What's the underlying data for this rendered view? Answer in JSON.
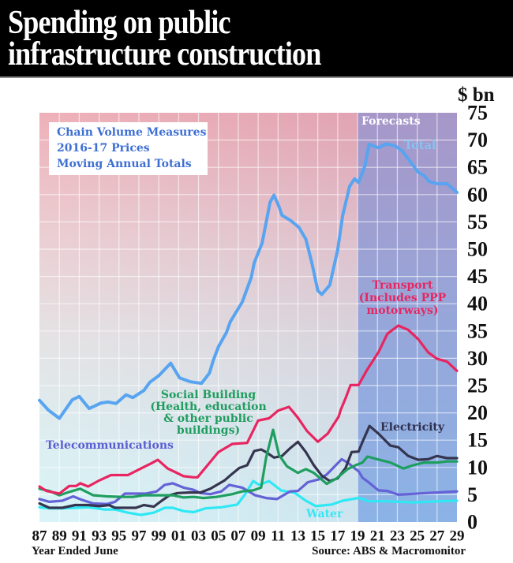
{
  "chart_data": {
    "type": "line",
    "title": "Spending on public infrastructure construction",
    "title_lines": [
      "Spending on public",
      "infrastructure construction"
    ],
    "unit_label": "$ bn",
    "xlabel": "Year Ended June",
    "ylabel": "$ bn",
    "source": "Source: ABS & Macromonitor",
    "note_lines": [
      "Chain Volume Measures",
      "2016-17 Prices",
      "Moving Annual Totals"
    ],
    "forecast_label": "Forecasts",
    "forecast_start": 2019,
    "xlim": [
      1987,
      2029
    ],
    "ylim": [
      0,
      75
    ],
    "grid": true,
    "legend": "inline labels",
    "y_ticks": [
      0,
      5,
      10,
      15,
      20,
      25,
      30,
      35,
      40,
      45,
      50,
      55,
      60,
      65,
      70,
      75
    ],
    "x_ticks": [
      {
        "year": 1987,
        "label": "87"
      },
      {
        "year": 1989,
        "label": "89"
      },
      {
        "year": 1991,
        "label": "91"
      },
      {
        "year": 1993,
        "label": "93"
      },
      {
        "year": 1995,
        "label": "95"
      },
      {
        "year": 1997,
        "label": "97"
      },
      {
        "year": 1999,
        "label": "99"
      },
      {
        "year": 2001,
        "label": "01"
      },
      {
        "year": 2003,
        "label": "03"
      },
      {
        "year": 2005,
        "label": "05"
      },
      {
        "year": 2007,
        "label": "07"
      },
      {
        "year": 2009,
        "label": "09"
      },
      {
        "year": 2011,
        "label": "11"
      },
      {
        "year": 2013,
        "label": "13"
      },
      {
        "year": 2015,
        "label": "15"
      },
      {
        "year": 2017,
        "label": "17"
      },
      {
        "year": 2019,
        "label": "19"
      },
      {
        "year": 2021,
        "label": "21"
      },
      {
        "year": 2023,
        "label": "23"
      },
      {
        "year": 2025,
        "label": "25"
      },
      {
        "year": 2027,
        "label": "27"
      },
      {
        "year": 2029,
        "label": "29"
      }
    ],
    "series": [
      {
        "name": "Total",
        "label_lines": [
          "Total"
        ],
        "color": "#58a4f0",
        "label_color": "#86c3f4",
        "points": [
          [
            1987.0,
            22.3
          ],
          [
            1987.9,
            20.5
          ],
          [
            1989.0,
            19.0
          ],
          [
            1990.3,
            22.4
          ],
          [
            1991.0,
            23.0
          ],
          [
            1992.0,
            20.8
          ],
          [
            1993.2,
            21.8
          ],
          [
            1993.9,
            22.0
          ],
          [
            1994.7,
            21.7
          ],
          [
            1995.7,
            23.3
          ],
          [
            1996.4,
            22.8
          ],
          [
            1997.5,
            24.1
          ],
          [
            1998.1,
            25.6
          ],
          [
            1999.0,
            26.8
          ],
          [
            2000.2,
            29.1
          ],
          [
            2001.1,
            26.4
          ],
          [
            2002.2,
            25.7
          ],
          [
            2003.3,
            25.4
          ],
          [
            2004.1,
            27.3
          ],
          [
            2004.5,
            29.7
          ],
          [
            2005.0,
            32.1
          ],
          [
            2005.8,
            34.7
          ],
          [
            2006.2,
            36.7
          ],
          [
            2007.4,
            40.3
          ],
          [
            2008.3,
            44.8
          ],
          [
            2008.6,
            47.5
          ],
          [
            2009.4,
            51.1
          ],
          [
            2010.2,
            58.6
          ],
          [
            2010.6,
            59.9
          ],
          [
            2011.1,
            57.8
          ],
          [
            2011.4,
            56.2
          ],
          [
            2012.3,
            55.2
          ],
          [
            2013.1,
            54.0
          ],
          [
            2013.8,
            51.8
          ],
          [
            2014.4,
            47.5
          ],
          [
            2015.0,
            42.4
          ],
          [
            2015.4,
            41.7
          ],
          [
            2016.2,
            43.4
          ],
          [
            2017.0,
            49.9
          ],
          [
            2017.5,
            56.2
          ],
          [
            2018.2,
            61.5
          ],
          [
            2018.7,
            62.9
          ],
          [
            2019.1,
            62.2
          ],
          [
            2019.75,
            65.3
          ],
          [
            2020.15,
            69.2
          ],
          [
            2021.1,
            68.6
          ],
          [
            2021.9,
            69.3
          ],
          [
            2022.8,
            68.9
          ],
          [
            2023.5,
            68.0
          ],
          [
            2024.4,
            65.8
          ],
          [
            2025.1,
            64.1
          ],
          [
            2025.7,
            63.5
          ],
          [
            2026.2,
            62.4
          ],
          [
            2027.0,
            62.0
          ],
          [
            2028.0,
            62.0
          ],
          [
            2029.0,
            60.4
          ]
        ]
      },
      {
        "name": "Transport (Includes PPP motorways)",
        "label_lines": [
          "Transport",
          "(Includes PPP",
          "motorways)"
        ],
        "color": "#e82560",
        "label_color": "#e82560",
        "points": [
          [
            1987.0,
            6.5
          ],
          [
            1987.7,
            5.7
          ],
          [
            1989.0,
            5.2
          ],
          [
            1990.0,
            6.6
          ],
          [
            1990.7,
            6.6
          ],
          [
            1991.1,
            7.1
          ],
          [
            1991.9,
            6.5
          ],
          [
            1993.0,
            7.6
          ],
          [
            1994.2,
            8.6
          ],
          [
            1995.9,
            8.6
          ],
          [
            1997.2,
            9.8
          ],
          [
            1998.3,
            10.8
          ],
          [
            1998.9,
            11.4
          ],
          [
            1999.9,
            9.8
          ],
          [
            2000.7,
            9.1
          ],
          [
            2001.5,
            8.4
          ],
          [
            2002.5,
            8.2
          ],
          [
            2002.9,
            8.2
          ],
          [
            2004.0,
            10.6
          ],
          [
            2005.0,
            12.8
          ],
          [
            2006.4,
            14.3
          ],
          [
            2007.9,
            14.5
          ],
          [
            2009.0,
            18.6
          ],
          [
            2010.1,
            19.0
          ],
          [
            2011.0,
            20.4
          ],
          [
            2012.1,
            21.1
          ],
          [
            2013.0,
            19.1
          ],
          [
            2013.9,
            16.7
          ],
          [
            2015.0,
            14.7
          ],
          [
            2016.0,
            16.2
          ],
          [
            2017.1,
            19.3
          ],
          [
            2017.3,
            20.5
          ],
          [
            2017.8,
            22.7
          ],
          [
            2018.3,
            25.1
          ],
          [
            2019.1,
            25.1
          ],
          [
            2020.0,
            28.0
          ],
          [
            2021.1,
            31.1
          ],
          [
            2022.0,
            34.5
          ],
          [
            2023.1,
            36.0
          ],
          [
            2024.1,
            35.2
          ],
          [
            2025.1,
            33.5
          ],
          [
            2026.1,
            31.1
          ],
          [
            2027.0,
            29.9
          ],
          [
            2028.0,
            29.4
          ],
          [
            2029.0,
            27.7
          ]
        ]
      },
      {
        "name": "Social Building (Health, education & other public buildings)",
        "label_lines": [
          "Social Building",
          "(Health, education",
          "& other public",
          "buildings)"
        ],
        "color": "#1e9e5f",
        "label_color": "#1f9d5f",
        "points": [
          [
            1987.0,
            6.1
          ],
          [
            1988.0,
            5.7
          ],
          [
            1989.0,
            4.9
          ],
          [
            1990.0,
            5.5
          ],
          [
            1991.1,
            6.1
          ],
          [
            1992.4,
            4.9
          ],
          [
            1993.8,
            4.7
          ],
          [
            1995.4,
            4.6
          ],
          [
            1996.4,
            4.6
          ],
          [
            1997.5,
            4.9
          ],
          [
            1999.0,
            4.9
          ],
          [
            2000.4,
            4.9
          ],
          [
            2001.5,
            4.5
          ],
          [
            2002.5,
            4.6
          ],
          [
            2003.5,
            4.4
          ],
          [
            2004.8,
            4.6
          ],
          [
            2006.4,
            5.1
          ],
          [
            2007.4,
            5.6
          ],
          [
            2008.5,
            5.8
          ],
          [
            2009.3,
            6.3
          ],
          [
            2009.8,
            11.8
          ],
          [
            2010.5,
            16.9
          ],
          [
            2011.1,
            12.3
          ],
          [
            2011.9,
            10.2
          ],
          [
            2013.0,
            9.0
          ],
          [
            2013.8,
            9.7
          ],
          [
            2014.6,
            9.0
          ],
          [
            2015.9,
            7.0
          ],
          [
            2016.9,
            8.0
          ],
          [
            2018.0,
            9.7
          ],
          [
            2018.8,
            10.4
          ],
          [
            2019.5,
            10.9
          ],
          [
            2020.0,
            12.0
          ],
          [
            2021.0,
            11.5
          ],
          [
            2022.3,
            10.9
          ],
          [
            2023.6,
            9.8
          ],
          [
            2024.6,
            10.4
          ],
          [
            2025.7,
            10.9
          ],
          [
            2027.0,
            10.9
          ],
          [
            2028.0,
            11.1
          ],
          [
            2029.0,
            11.1
          ]
        ]
      },
      {
        "name": "Electricity",
        "label_lines": [
          "Electricity"
        ],
        "color": "#35354f",
        "label_color": "#303150",
        "points": [
          [
            1987.0,
            3.4
          ],
          [
            1988.0,
            2.6
          ],
          [
            1989.3,
            2.6
          ],
          [
            1990.6,
            3.1
          ],
          [
            1991.9,
            3.1
          ],
          [
            1993.0,
            2.9
          ],
          [
            1994.0,
            3.1
          ],
          [
            1994.6,
            2.6
          ],
          [
            1996.7,
            2.6
          ],
          [
            1997.5,
            3.1
          ],
          [
            1998.5,
            2.8
          ],
          [
            1999.3,
            3.9
          ],
          [
            2000.1,
            4.9
          ],
          [
            2000.9,
            5.3
          ],
          [
            2002.1,
            5.4
          ],
          [
            2003.2,
            5.4
          ],
          [
            2004.2,
            6.1
          ],
          [
            2005.6,
            7.6
          ],
          [
            2006.3,
            8.7
          ],
          [
            2007.1,
            9.9
          ],
          [
            2007.9,
            10.4
          ],
          [
            2008.6,
            13.0
          ],
          [
            2009.3,
            13.3
          ],
          [
            2009.8,
            12.8
          ],
          [
            2010.6,
            11.8
          ],
          [
            2011.4,
            12.1
          ],
          [
            2012.2,
            13.5
          ],
          [
            2013.0,
            14.7
          ],
          [
            2013.8,
            12.8
          ],
          [
            2014.6,
            10.4
          ],
          [
            2015.4,
            8.5
          ],
          [
            2016.2,
            7.5
          ],
          [
            2017.0,
            8.0
          ],
          [
            2017.8,
            9.9
          ],
          [
            2018.4,
            12.8
          ],
          [
            2019.1,
            12.9
          ],
          [
            2019.5,
            14.7
          ],
          [
            2020.2,
            17.6
          ],
          [
            2021.1,
            16.2
          ],
          [
            2022.3,
            14.0
          ],
          [
            2023.1,
            13.7
          ],
          [
            2024.1,
            12.1
          ],
          [
            2025.1,
            11.4
          ],
          [
            2026.1,
            11.5
          ],
          [
            2027.0,
            12.1
          ],
          [
            2028.0,
            11.7
          ],
          [
            2029.0,
            11.7
          ]
        ]
      },
      {
        "name": "Telecommunications",
        "label_lines": [
          "Telecommunications"
        ],
        "color": "#6462d6",
        "label_color": "#5b5ed2",
        "points": [
          [
            1987.0,
            4.2
          ],
          [
            1988.0,
            3.7
          ],
          [
            1989.3,
            3.9
          ],
          [
            1990.4,
            4.7
          ],
          [
            1991.2,
            4.1
          ],
          [
            1992.4,
            3.4
          ],
          [
            1993.8,
            3.3
          ],
          [
            1994.6,
            3.7
          ],
          [
            1995.6,
            5.2
          ],
          [
            1997.7,
            5.2
          ],
          [
            1998.8,
            5.6
          ],
          [
            1999.6,
            6.8
          ],
          [
            2000.4,
            7.1
          ],
          [
            2001.5,
            6.3
          ],
          [
            2002.5,
            5.9
          ],
          [
            2003.2,
            5.3
          ],
          [
            2004.2,
            5.1
          ],
          [
            2005.3,
            5.6
          ],
          [
            2006.1,
            6.8
          ],
          [
            2007.4,
            6.3
          ],
          [
            2008.7,
            4.9
          ],
          [
            2009.8,
            4.4
          ],
          [
            2010.9,
            4.2
          ],
          [
            2012.2,
            5.6
          ],
          [
            2013.0,
            5.7
          ],
          [
            2014.0,
            7.3
          ],
          [
            2015.1,
            7.8
          ],
          [
            2015.9,
            8.7
          ],
          [
            2016.7,
            10.2
          ],
          [
            2017.4,
            11.5
          ],
          [
            2018.0,
            10.9
          ],
          [
            2018.6,
            10.0
          ],
          [
            2019.1,
            9.3
          ],
          [
            2019.5,
            8.1
          ],
          [
            2020.1,
            7.3
          ],
          [
            2021.1,
            5.8
          ],
          [
            2022.0,
            5.7
          ],
          [
            2023.1,
            5.0
          ],
          [
            2024.1,
            5.1
          ],
          [
            2025.9,
            5.3
          ],
          [
            2029.0,
            5.6
          ]
        ]
      },
      {
        "name": "Water",
        "label_lines": [
          "Water"
        ],
        "color": "#2ee8f4",
        "label_color": "#38e6f2",
        "points": [
          [
            1987.0,
            2.7
          ],
          [
            1988.0,
            2.5
          ],
          [
            1989.3,
            2.5
          ],
          [
            1990.6,
            2.6
          ],
          [
            1991.9,
            2.7
          ],
          [
            1993.5,
            2.3
          ],
          [
            1994.6,
            2.3
          ],
          [
            1995.9,
            1.7
          ],
          [
            1997.2,
            1.3
          ],
          [
            1998.5,
            1.7
          ],
          [
            1999.6,
            2.6
          ],
          [
            2000.4,
            2.6
          ],
          [
            2001.5,
            2.0
          ],
          [
            2002.5,
            1.8
          ],
          [
            2003.7,
            2.5
          ],
          [
            2005.3,
            2.7
          ],
          [
            2006.9,
            3.2
          ],
          [
            2007.7,
            5.1
          ],
          [
            2008.5,
            7.5
          ],
          [
            2009.1,
            6.8
          ],
          [
            2010.1,
            7.5
          ],
          [
            2011.3,
            5.8
          ],
          [
            2012.7,
            5.3
          ],
          [
            2013.8,
            3.9
          ],
          [
            2014.8,
            2.9
          ],
          [
            2016.4,
            3.2
          ],
          [
            2017.5,
            3.9
          ],
          [
            2019.1,
            4.4
          ],
          [
            2019.6,
            4.2
          ],
          [
            2020.0,
            3.8
          ],
          [
            2022.0,
            3.8
          ],
          [
            2024.6,
            3.6
          ],
          [
            2027.3,
            3.8
          ],
          [
            2029.0,
            3.9
          ]
        ]
      }
    ]
  }
}
